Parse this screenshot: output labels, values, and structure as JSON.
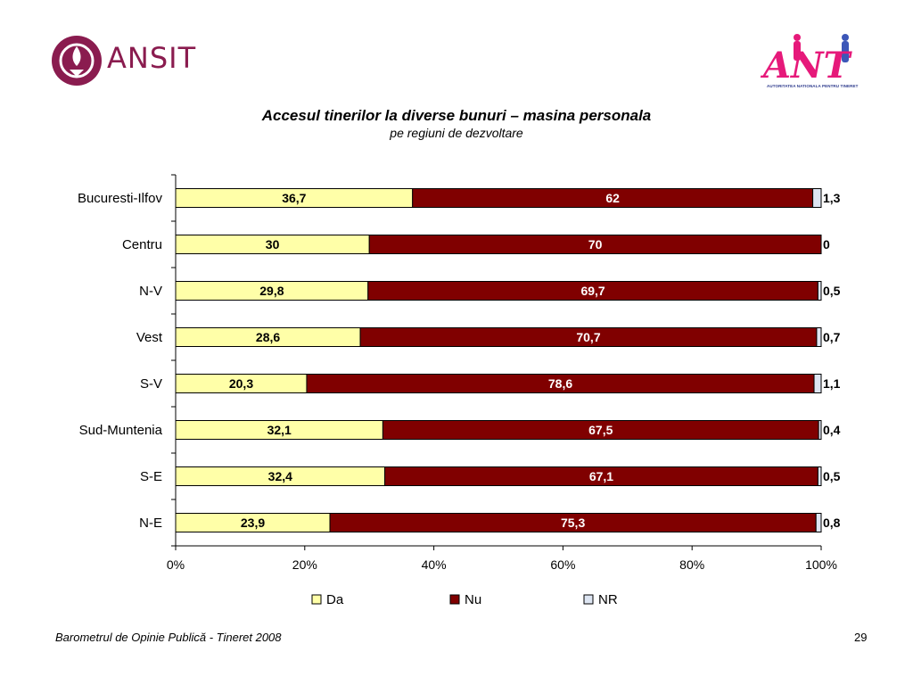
{
  "logos": {
    "left_text": "ANSIT",
    "right_text": "ANT",
    "right_subtext": "AUTORITATEA NATIONALA PENTRU TINERET"
  },
  "colors": {
    "da": "#ffffa8",
    "nu": "#800000",
    "nr": "#dde5f2",
    "ansit": "#8a1c4f",
    "ant": "#e6197a"
  },
  "chart_data": {
    "type": "bar",
    "orientation": "horizontal",
    "stacked": "percent",
    "title": "Accesul tinerilor la diverse bunuri – masina personala",
    "subtitle": "pe regiuni de dezvoltare",
    "categories": [
      "Bucuresti-Ilfov",
      "Centru",
      "N-V",
      "Vest",
      "S-V",
      "Sud-Muntenia",
      "S-E",
      "N-E"
    ],
    "series": [
      {
        "name": "Da",
        "values": [
          36.7,
          30,
          29.8,
          28.6,
          20.3,
          32.1,
          32.4,
          23.9
        ],
        "labels": [
          "36,7",
          "30",
          "29,8",
          "28,6",
          "20,3",
          "32,1",
          "32,4",
          "23,9"
        ]
      },
      {
        "name": "Nu",
        "values": [
          62,
          70,
          69.7,
          70.7,
          78.6,
          67.5,
          67.1,
          75.3
        ],
        "labels": [
          "62",
          "70",
          "69,7",
          "70,7",
          "78,6",
          "67,5",
          "67,1",
          "75,3"
        ]
      },
      {
        "name": "NR",
        "values": [
          1.3,
          0,
          0.5,
          0.7,
          1.1,
          0.4,
          0.5,
          0.8
        ],
        "labels": [
          "1,3",
          "0",
          "0,5",
          "0,7",
          "1,1",
          "0,4",
          "0,5",
          "0,8"
        ]
      }
    ],
    "xlim": [
      0,
      100
    ],
    "xticks": [
      "0%",
      "20%",
      "40%",
      "60%",
      "80%",
      "100%"
    ],
    "grid": false,
    "legend": "bottom"
  },
  "footer": {
    "source": "Barometrul de Opinie Publică - Tineret 2008",
    "page": "29"
  }
}
